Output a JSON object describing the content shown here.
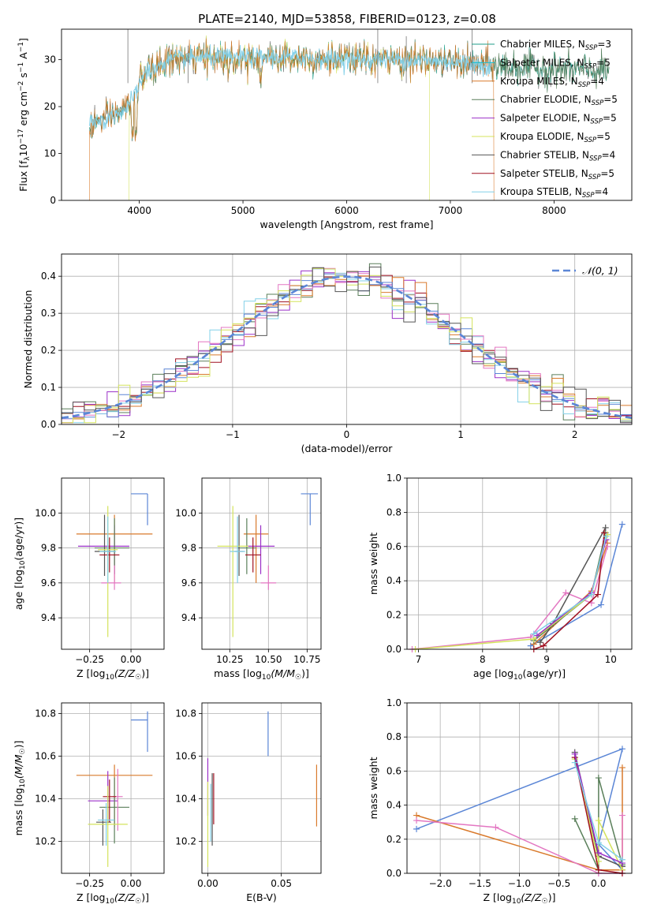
{
  "figure": {
    "title": "PLATE=2140, MJD=53858, FIBERID=0123, z=0.08"
  },
  "model_colors": {
    "Chabrier MILES": "#1f9e89",
    "Salpeter MILES": "#17becf",
    "Kroupa MILES": "#d97a2c",
    "Chabrier ELODIE": "#5a7f5a",
    "Salpeter ELODIE": "#9b30c8",
    "Kroupa ELODIE": "#d4e35c",
    "Chabrier STELIB": "#555555",
    "Salpeter STELIB": "#a01020",
    "Kroupa STELIB": "#82d0e8",
    "pink": "#e377c2",
    "blue": "#5b86d6"
  },
  "chart_data": [
    {
      "id": "spectrum",
      "type": "line",
      "title": "PLATE=2140, MJD=53858, FIBERID=0123, z=0.08",
      "xlabel": "wavelength [Angstrom, rest frame]",
      "ylabel": "Flux [f_λ10^-17 erg cm^-2 s^-1 A^-1]",
      "xlim": [
        3250,
        8750
      ],
      "ylim": [
        0,
        36.5
      ],
      "xticks": [
        4000,
        5000,
        6000,
        7000,
        8000
      ],
      "yticks": [
        0,
        10,
        20,
        30
      ],
      "grid": false,
      "legend_position": "upper-right",
      "legend": [
        {
          "name": "Chabrier MILES",
          "nssp": "3"
        },
        {
          "name": "Salpeter MILES",
          "nssp": "5"
        },
        {
          "name": "Kroupa MILES",
          "nssp": "4"
        },
        {
          "name": "Chabrier ELODIE",
          "nssp": "5"
        },
        {
          "name": "Salpeter ELODIE",
          "nssp": "5"
        },
        {
          "name": "Kroupa ELODIE",
          "nssp": "5"
        },
        {
          "name": "Chabrier STELIB",
          "nssp": "4"
        },
        {
          "name": "Salpeter STELIB",
          "nssp": "5"
        },
        {
          "name": "Kroupa STELIB",
          "nssp": "4"
        }
      ],
      "spectrum_range": [
        3520,
        8530
      ],
      "continuum_points": [
        [
          3520,
          16
        ],
        [
          3700,
          17.5
        ],
        [
          3900,
          20
        ],
        [
          4050,
          27
        ],
        [
          4300,
          30
        ],
        [
          4600,
          30.5
        ],
        [
          5000,
          30.5
        ],
        [
          5500,
          30.5
        ],
        [
          6000,
          30
        ],
        [
          6500,
          30
        ],
        [
          7000,
          29.5
        ],
        [
          7500,
          28.5
        ],
        [
          8000,
          28
        ],
        [
          8500,
          27.5
        ]
      ],
      "model_edges": [
        {
          "series": "Kroupa MILES",
          "start": 3520,
          "end": 7420
        },
        {
          "series": "Kroupa ELODIE",
          "start": 3900,
          "end": 6800
        },
        {
          "series": "Salpeter STELIB",
          "start": 3520,
          "end": 7420
        }
      ]
    },
    {
      "id": "residuals",
      "type": "histogram",
      "xlabel": "(data-model)/error",
      "ylabel": "Normed distribution",
      "xlim": [
        -2.5,
        2.5
      ],
      "ylim": [
        0,
        0.46
      ],
      "xticks": [
        -2,
        -1,
        0,
        1,
        2
      ],
      "yticks": [
        0.0,
        0.1,
        0.2,
        0.3,
        0.4
      ],
      "grid": true,
      "legend_position": "upper-right",
      "legend_label": "𝒩(0, 1)",
      "bin_width": 0.1,
      "reference_curve": {
        "type": "normal",
        "mean": 0,
        "sigma": 1
      }
    },
    {
      "id": "age_vs_z",
      "type": "errorbar",
      "xlabel": "Z [log10(Z/Z☉)]",
      "ylabel": "age [log10(age/yr)]",
      "xlim": [
        -0.42,
        0.2
      ],
      "ylim": [
        9.22,
        10.2
      ],
      "xticks": [
        -0.25,
        0.0
      ],
      "yticks": [
        9.4,
        9.6,
        9.8,
        10.0
      ],
      "grid": true,
      "points": [
        {
          "series": "blue",
          "x": 0.1,
          "xerr": [
            0.1,
            0.0
          ],
          "y": 10.11,
          "yerr": [
            0.18,
            0.0
          ]
        },
        {
          "series": "Kroupa MILES",
          "x": -0.1,
          "xerr": [
            0.23,
            0.23
          ],
          "y": 9.88,
          "yerr": [
            0.28,
            0.11
          ]
        },
        {
          "series": "Salpeter ELODIE",
          "x": -0.1,
          "xerr": [
            0.22,
            0.09
          ],
          "y": 9.81,
          "yerr": [
            0.16,
            0.12
          ]
        },
        {
          "series": "Chabrier ELODIE",
          "x": -0.1,
          "xerr": [
            0.12,
            0.09
          ],
          "y": 9.8,
          "yerr": [
            0.15,
            0.17
          ]
        },
        {
          "series": "Chabrier STELIB",
          "x": -0.16,
          "xerr": [
            0.06,
            0.06
          ],
          "y": 9.78,
          "yerr": [
            0.14,
            0.21
          ]
        },
        {
          "series": "pink",
          "x": -0.1,
          "xerr": [
            0.08,
            0.04
          ],
          "y": 9.6,
          "yerr": [
            0.04,
            0.1
          ]
        },
        {
          "series": "Salpeter STELIB",
          "x": -0.13,
          "xerr": [
            0.06,
            0.06
          ],
          "y": 9.76,
          "yerr": [
            0.1,
            0.1
          ]
        },
        {
          "series": "Kroupa ELODIE",
          "x": -0.14,
          "xerr": [
            0.06,
            0.06
          ],
          "y": 9.79,
          "yerr": [
            0.5,
            0.25
          ]
        },
        {
          "series": "Kroupa STELIB",
          "x": -0.14,
          "xerr": [
            0.05,
            0.05
          ],
          "y": 9.78,
          "yerr": [
            0.18,
            0.2
          ]
        }
      ]
    },
    {
      "id": "age_vs_mass",
      "type": "errorbar",
      "xlabel": "mass [log10(M/M☉)]",
      "ylabel": "",
      "xlim": [
        10.07,
        10.84
      ],
      "ylim": [
        9.22,
        10.2
      ],
      "xticks": [
        10.25,
        10.5,
        10.75
      ],
      "yticks": [
        9.4,
        9.6,
        9.8,
        10.0
      ],
      "grid": true,
      "points": [
        {
          "series": "blue",
          "x": 10.77,
          "xerr": [
            0.06,
            0.05
          ],
          "y": 10.11,
          "yerr": [
            0.18,
            0.0
          ]
        },
        {
          "series": "Kroupa MILES",
          "x": 10.42,
          "xerr": [
            0.08,
            0.08
          ],
          "y": 9.88,
          "yerr": [
            0.28,
            0.11
          ]
        },
        {
          "series": "Salpeter ELODIE",
          "x": 10.45,
          "xerr": [
            0.09,
            0.09
          ],
          "y": 9.81,
          "yerr": [
            0.16,
            0.12
          ]
        },
        {
          "series": "Chabrier ELODIE",
          "x": 10.36,
          "xerr": [
            0.06,
            0.06
          ],
          "y": 9.8,
          "yerr": [
            0.15,
            0.17
          ]
        },
        {
          "series": "Chabrier STELIB",
          "x": 10.31,
          "xerr": [
            0.03,
            0.03
          ],
          "y": 9.78,
          "yerr": [
            0.14,
            0.21
          ]
        },
        {
          "series": "pink",
          "x": 10.5,
          "xerr": [
            0.05,
            0.05
          ],
          "y": 9.6,
          "yerr": [
            0.04,
            0.1
          ]
        },
        {
          "series": "Salpeter STELIB",
          "x": 10.4,
          "xerr": [
            0.05,
            0.05
          ],
          "y": 9.76,
          "yerr": [
            0.1,
            0.1
          ]
        },
        {
          "series": "Kroupa ELODIE",
          "x": 10.27,
          "xerr": [
            0.1,
            0.1
          ],
          "y": 9.81,
          "yerr": [
            0.52,
            0.23
          ]
        },
        {
          "series": "Kroupa STELIB",
          "x": 10.3,
          "xerr": [
            0.05,
            0.05
          ],
          "y": 9.78,
          "yerr": [
            0.18,
            0.2
          ]
        }
      ]
    },
    {
      "id": "massweight_vs_age",
      "type": "line",
      "xlabel": "age [log10(age/yr)]",
      "ylabel": "mass weight",
      "xlim": [
        6.82,
        10.33
      ],
      "ylim": [
        0,
        1
      ],
      "xticks": [
        7,
        8,
        9,
        10
      ],
      "yticks": [
        0.0,
        0.2,
        0.4,
        0.6,
        0.8,
        1.0
      ],
      "grid": true,
      "series": [
        {
          "name": "blue",
          "x": [
            8.75,
            9.85,
            10.18
          ],
          "y": [
            0.02,
            0.26,
            0.73
          ]
        },
        {
          "name": "Kroupa MILES",
          "x": [
            8.8,
            9.7,
            9.95
          ],
          "y": [
            0.03,
            0.34,
            0.62
          ]
        },
        {
          "name": "pink",
          "x": [
            6.9,
            8.75,
            9.3,
            9.7,
            9.95
          ],
          "y": [
            0.0,
            0.07,
            0.33,
            0.27,
            0.6
          ]
        },
        {
          "name": "Chabrier ELODIE",
          "x": [
            8.8,
            9.7,
            9.92
          ],
          "y": [
            0.05,
            0.32,
            0.68
          ]
        },
        {
          "name": "Chabrier STELIB",
          "x": [
            8.9,
            9.1,
            9.92
          ],
          "y": [
            0.04,
            0.15,
            0.71
          ]
        },
        {
          "name": "Kroupa ELODIE",
          "x": [
            6.95,
            8.8,
            9.7,
            9.95
          ],
          "y": [
            0.0,
            0.06,
            0.32,
            0.67
          ]
        },
        {
          "name": "Salpeter STELIB",
          "x": [
            8.8,
            8.95,
            9.8,
            9.9
          ],
          "y": [
            0.0,
            0.02,
            0.32,
            0.68
          ]
        },
        {
          "name": "Salpeter ELODIE",
          "x": [
            8.85,
            9.7,
            9.93
          ],
          "y": [
            0.08,
            0.33,
            0.64
          ]
        },
        {
          "name": "Kroupa STELIB",
          "x": [
            8.8,
            9.7,
            9.93
          ],
          "y": [
            0.09,
            0.32,
            0.66
          ]
        }
      ]
    },
    {
      "id": "mass_vs_z",
      "type": "errorbar",
      "xlabel": "Z [log10(Z/Z☉)]",
      "ylabel": "mass [log10(M/M☉)]",
      "xlim": [
        -0.42,
        0.2
      ],
      "ylim": [
        10.05,
        10.85
      ],
      "xticks": [
        -0.25,
        0.0
      ],
      "yticks": [
        10.2,
        10.4,
        10.6,
        10.8
      ],
      "grid": true,
      "points": [
        {
          "series": "blue",
          "x": 0.1,
          "xerr": [
            0.1,
            0.0
          ],
          "y": 10.77,
          "yerr": [
            0.15,
            0.04
          ]
        },
        {
          "series": "Kroupa MILES",
          "x": -0.1,
          "xerr": [
            0.23,
            0.23
          ],
          "y": 10.51,
          "yerr": [
            0.24,
            0.05
          ]
        },
        {
          "series": "Salpeter ELODIE",
          "x": -0.14,
          "xerr": [
            0.12,
            0.06
          ],
          "y": 10.39,
          "yerr": [
            0.1,
            0.14
          ]
        },
        {
          "series": "Chabrier ELODIE",
          "x": -0.1,
          "xerr": [
            0.09,
            0.09
          ],
          "y": 10.36,
          "yerr": [
            0.17,
            0.14
          ]
        },
        {
          "series": "Chabrier STELIB",
          "x": -0.17,
          "xerr": [
            0.04,
            0.05
          ],
          "y": 10.29,
          "yerr": [
            0.11,
            0.06
          ]
        },
        {
          "series": "pink",
          "x": -0.08,
          "xerr": [
            0.03,
            0.03
          ],
          "y": 10.41,
          "yerr": [
            0.16,
            0.13
          ]
        },
        {
          "series": "Salpeter STELIB",
          "x": -0.13,
          "xerr": [
            0.04,
            0.04
          ],
          "y": 10.41,
          "yerr": [
            0.12,
            0.08
          ]
        },
        {
          "series": "Kroupa ELODIE",
          "x": -0.14,
          "xerr": [
            0.12,
            0.12
          ],
          "y": 10.28,
          "yerr": [
            0.2,
            0.18
          ]
        },
        {
          "series": "Kroupa STELIB",
          "x": -0.15,
          "xerr": [
            0.05,
            0.05
          ],
          "y": 10.3,
          "yerr": [
            0.12,
            0.08
          ]
        }
      ]
    },
    {
      "id": "mass_vs_ebv",
      "type": "errorbar",
      "xlabel": "E(B-V)",
      "ylabel": "",
      "xlim": [
        -0.004,
        0.077
      ],
      "ylim": [
        10.05,
        10.85
      ],
      "xticks": [
        0.0,
        0.05
      ],
      "yticks": [
        10.2,
        10.4,
        10.6,
        10.8
      ],
      "grid": true,
      "points": [
        {
          "series": "blue",
          "x": 0.041,
          "xerr": [
            0,
            0
          ],
          "y": 10.7,
          "yerr": [
            0.1,
            0.11
          ]
        },
        {
          "series": "Kroupa MILES",
          "x": 0.074,
          "xerr": [
            0,
            0
          ],
          "y": 10.45,
          "yerr": [
            0.18,
            0.11
          ]
        },
        {
          "series": "Salpeter ELODIE",
          "x": 0.0,
          "xerr": [
            0,
            0
          ],
          "y": 10.45,
          "yerr": [
            0.13,
            0.14
          ]
        },
        {
          "series": "Kroupa ELODIE",
          "x": 0.0,
          "xerr": [
            0,
            0
          ],
          "y": 10.28,
          "yerr": [
            0.2,
            0.2
          ]
        },
        {
          "series": "Chabrier STELIB",
          "x": 0.003,
          "xerr": [
            0,
            0
          ],
          "y": 10.34,
          "yerr": [
            0.16,
            0.18
          ]
        },
        {
          "series": "Salpeter STELIB",
          "x": 0.004,
          "xerr": [
            0,
            0
          ],
          "y": 10.38,
          "yerr": [
            0.1,
            0.14
          ]
        },
        {
          "series": "Kroupa STELIB",
          "x": 0.002,
          "xerr": [
            0,
            0
          ],
          "y": 10.33,
          "yerr": [
            0.13,
            0.14
          ]
        }
      ]
    },
    {
      "id": "massweight_vs_z",
      "type": "line",
      "xlabel": "Z [log10(Z/Z☉)]",
      "ylabel": "mass weight",
      "xlim": [
        -2.42,
        0.42
      ],
      "ylim": [
        0,
        1
      ],
      "xticks": [
        -2.0,
        -1.5,
        -1.0,
        -0.5,
        0.0
      ],
      "yticks": [
        0.0,
        0.2,
        0.4,
        0.6,
        0.8,
        1.0
      ],
      "grid": true,
      "series": [
        {
          "name": "blue",
          "x": [
            -2.3,
            0.3,
            0.0,
            0.3
          ],
          "y": [
            0.26,
            0.73,
            0.17,
            0.02
          ]
        },
        {
          "name": "Kroupa MILES",
          "x": [
            -2.3,
            0.0,
            0.3,
            0.3
          ],
          "y": [
            0.34,
            0.02,
            0.02,
            0.62
          ]
        },
        {
          "name": "pink",
          "x": [
            -2.3,
            -1.3,
            0.0,
            0.3,
            0.3
          ],
          "y": [
            0.31,
            0.27,
            0.0,
            0.0,
            0.34
          ]
        },
        {
          "name": "Chabrier ELODIE",
          "x": [
            -0.3,
            0.0,
            0.0,
            0.3
          ],
          "y": [
            0.32,
            0.02,
            0.56,
            0.05
          ]
        },
        {
          "name": "Chabrier STELIB",
          "x": [
            -0.3,
            0.0,
            0.3
          ],
          "y": [
            0.71,
            0.1,
            0.04
          ]
        },
        {
          "name": "Kroupa ELODIE",
          "x": [
            -0.3,
            0.0,
            0.0,
            0.3
          ],
          "y": [
            0.67,
            0.07,
            0.31,
            0.02
          ]
        },
        {
          "name": "Salpeter STELIB",
          "x": [
            -0.3,
            0.0,
            0.3
          ],
          "y": [
            0.68,
            0.02,
            0.0
          ]
        },
        {
          "name": "Salpeter ELODIE",
          "x": [
            -0.3,
            0.0,
            0.3
          ],
          "y": [
            0.7,
            0.12,
            0.06
          ]
        },
        {
          "name": "Kroupa STELIB",
          "x": [
            -0.3,
            0.0,
            0.3
          ],
          "y": [
            0.65,
            0.18,
            0.08
          ]
        }
      ]
    }
  ]
}
